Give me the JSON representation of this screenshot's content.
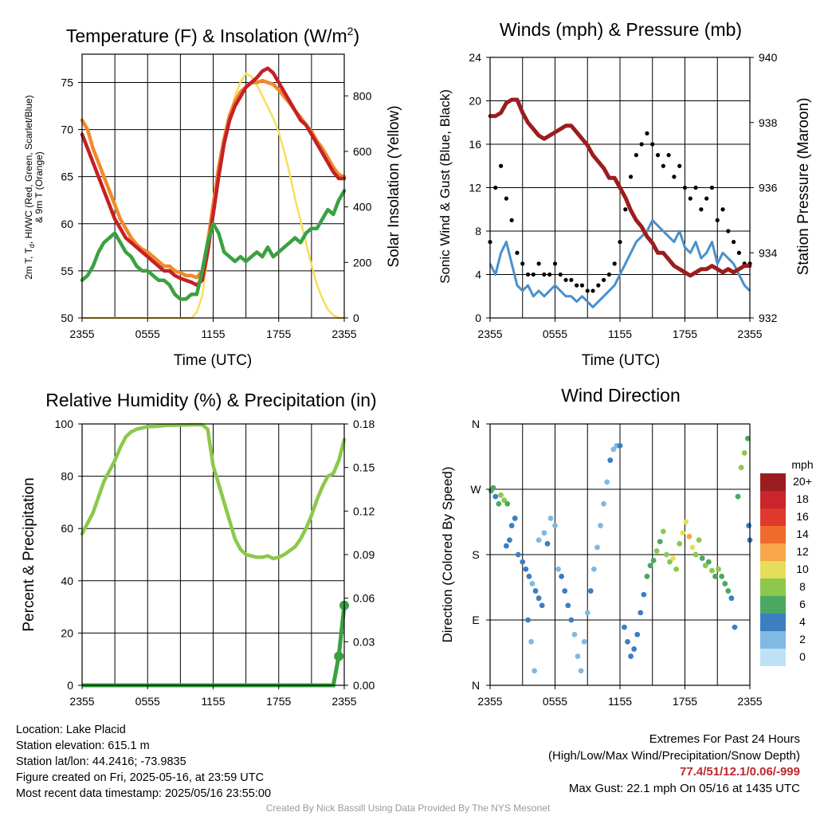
{
  "colors": {
    "temp": "#c42127",
    "dewpoint": "#3aa140",
    "windchill": "#e36d2a",
    "temp9m": "#f08a2a",
    "solar": "#f7de5a",
    "sonic_wind": "#4a90cc",
    "gust": "#000000",
    "pressure": "#9b1d1d",
    "rh": "#8cc84b",
    "precip": "#3aa140"
  },
  "chart_data": [
    {
      "type": "line",
      "title": "Temperature (F) & Insolation (W/m²)",
      "title_main": "Temperature (F) & Insolation (W/m",
      "title_sup": "2",
      "title_end": ")",
      "xlabel": "Time (UTC)",
      "xticks": [
        "2355",
        "0555",
        "1155",
        "1755",
        "2355"
      ],
      "ylabel_left_lines": [
        "2m T, T",
        "d",
        ", HI/WC (Red, Green, Scarlet/Blue)",
        "& 9m T (Orange)"
      ],
      "ylabel_right": "Solar Insolation (Yellow)",
      "ylim": [
        50,
        78
      ],
      "yticks_left": [
        50,
        55,
        60,
        65,
        70,
        75
      ],
      "ylim_right": [
        0,
        950
      ],
      "yticks_right": [
        0,
        200,
        400,
        600,
        800
      ],
      "x_hours": [
        0,
        0.5,
        1,
        1.5,
        2,
        2.5,
        3,
        3.5,
        4,
        4.5,
        5,
        5.5,
        6,
        6.5,
        7,
        7.5,
        8,
        8.5,
        9,
        9.5,
        10,
        10.5,
        11,
        11.5,
        12,
        12.5,
        13,
        13.5,
        14,
        14.5,
        15,
        15.5,
        16,
        16.5,
        17,
        17.5,
        18,
        18.5,
        19,
        19.5,
        20,
        20.5,
        21,
        21.5,
        22,
        22.5,
        23,
        23.5,
        24
      ],
      "series": [
        {
          "key": "temp9m",
          "values": [
            71,
            70,
            68,
            66.5,
            65,
            63.5,
            62,
            60.5,
            59.5,
            58.5,
            57.8,
            57.3,
            57,
            56.5,
            56,
            55.5,
            55.5,
            55,
            54.8,
            54.5,
            54.5,
            54.3,
            55,
            58,
            62,
            66,
            69,
            71.5,
            73,
            74,
            74.5,
            75,
            75,
            75.2,
            75,
            74.8,
            74.2,
            73.5,
            72.8,
            72,
            71.3,
            70.5,
            69.8,
            68.8,
            68,
            67,
            66,
            65.2,
            65
          ]
        },
        {
          "key": "temp",
          "values": [
            69.5,
            68,
            66.5,
            65,
            63.5,
            62,
            60.5,
            59.5,
            58.5,
            58,
            57.5,
            57,
            56.5,
            56,
            55.5,
            55,
            55,
            54.5,
            54.2,
            54,
            53.8,
            53.5,
            54,
            57,
            61,
            65,
            68.5,
            71,
            72.5,
            73.5,
            74.5,
            75,
            75.5,
            76.2,
            76.5,
            76,
            75,
            74,
            73,
            72,
            71,
            70.5,
            69.5,
            68.5,
            67.5,
            66.5,
            65.5,
            64.8,
            64.8
          ]
        },
        {
          "key": "dewpoint",
          "values": [
            54,
            54.5,
            55.5,
            57,
            58,
            58.5,
            59,
            58,
            57,
            56.5,
            55.5,
            55,
            55,
            54.5,
            54,
            54,
            53.5,
            52.5,
            52,
            52,
            52.5,
            52.5,
            55,
            58,
            60,
            59,
            57,
            56.5,
            56,
            56.5,
            56,
            56.5,
            57,
            56.5,
            57.5,
            56.5,
            57,
            57.5,
            58,
            58.5,
            58,
            59,
            59.5,
            59.5,
            60.5,
            61.5,
            61,
            62.5,
            63.5
          ]
        },
        {
          "key": "solar",
          "values": [
            0,
            0,
            0,
            0,
            0,
            0,
            0,
            0,
            0,
            0,
            0,
            0,
            0,
            0,
            0,
            0,
            0,
            0,
            0,
            0,
            0,
            20,
            80,
            220,
            400,
            540,
            650,
            720,
            800,
            850,
            880,
            870,
            840,
            800,
            760,
            720,
            670,
            600,
            520,
            430,
            350,
            270,
            190,
            120,
            70,
            30,
            10,
            0,
            0
          ]
        }
      ]
    },
    {
      "type": "scatter",
      "title": "Winds (mph) & Pressure (mb)",
      "xlabel": "Time (UTC)",
      "xticks": [
        "2355",
        "0555",
        "1155",
        "1755",
        "2355"
      ],
      "ylabel_left": "Sonic Wind & Gust (Blue, Black)",
      "ylabel_right": "Station Pressure (Maroon)",
      "ylim": [
        0,
        24
      ],
      "yticks_left": [
        0,
        4,
        8,
        12,
        16,
        20,
        24
      ],
      "ylim_right": [
        932,
        940
      ],
      "yticks_right": [
        932,
        934,
        936,
        938,
        940
      ],
      "x_hours": [
        0,
        0.5,
        1,
        1.5,
        2,
        2.5,
        3,
        3.5,
        4,
        4.5,
        5,
        5.5,
        6,
        6.5,
        7,
        7.5,
        8,
        8.5,
        9,
        9.5,
        10,
        10.5,
        11,
        11.5,
        12,
        12.5,
        13,
        13.5,
        14,
        14.5,
        15,
        15.5,
        16,
        16.5,
        17,
        17.5,
        18,
        18.5,
        19,
        19.5,
        20,
        20.5,
        21,
        21.5,
        22,
        22.5,
        23,
        23.5,
        24
      ],
      "series": [
        {
          "key": "sonic_wind",
          "values": [
            5,
            4,
            6,
            7,
            5,
            3,
            2.5,
            3,
            2,
            2.5,
            2,
            2.5,
            3,
            2.5,
            2,
            2,
            1.5,
            2,
            1.5,
            1,
            1.5,
            2,
            2.5,
            3,
            4,
            5,
            6,
            7,
            7.5,
            8,
            9,
            8.5,
            8,
            7.5,
            7,
            8,
            6.5,
            6,
            7,
            5.5,
            6,
            7,
            5,
            6,
            5.5,
            5,
            4,
            3,
            2.5
          ]
        },
        {
          "key": "gust",
          "values": [
            7,
            12,
            14,
            11,
            9,
            6,
            5,
            4,
            4,
            5,
            4,
            4,
            5,
            4,
            3.5,
            3.5,
            3,
            3,
            2.5,
            2.5,
            3,
            3.5,
            4,
            5,
            7,
            10,
            13,
            15,
            16,
            17,
            16,
            15,
            14,
            15,
            13,
            14,
            12,
            11,
            12,
            10,
            11,
            12,
            9,
            10,
            8,
            7,
            6,
            5,
            5
          ]
        },
        {
          "key": "pressure",
          "values": [
            938.2,
            938.2,
            938.3,
            938.6,
            938.7,
            938.7,
            938.3,
            938.0,
            937.8,
            937.6,
            937.5,
            937.6,
            937.7,
            937.8,
            937.9,
            937.9,
            937.7,
            937.5,
            937.3,
            937.0,
            936.8,
            936.6,
            936.3,
            936.3,
            936.0,
            935.7,
            935.3,
            935.0,
            934.8,
            934.5,
            934.3,
            934.0,
            934.0,
            933.8,
            933.6,
            933.5,
            933.4,
            933.3,
            933.4,
            933.5,
            933.5,
            933.6,
            933.5,
            933.4,
            933.5,
            933.4,
            933.5,
            933.6,
            933.6
          ]
        }
      ]
    },
    {
      "type": "line",
      "title": "Relative Humidity (%) & Precipitation (in)",
      "xlabel": "",
      "xticks": [
        "2355",
        "0555",
        "1155",
        "1755",
        "2355"
      ],
      "ylabel_left": "Percent & Precipitation",
      "ylim": [
        0,
        100
      ],
      "yticks_left": [
        0,
        20,
        40,
        60,
        80,
        100
      ],
      "ylim_right": [
        0,
        0.18
      ],
      "yticks_right": [
        "0.00",
        "0.03",
        "0.06",
        "0.09",
        "0.12",
        "0.15",
        "0.18"
      ],
      "x_hours": [
        0,
        0.5,
        1,
        1.5,
        2,
        2.5,
        3,
        3.5,
        4,
        4.5,
        5,
        5.5,
        6,
        6.5,
        7,
        7.5,
        8,
        8.5,
        9,
        9.5,
        10,
        10.5,
        11,
        11.5,
        12,
        12.5,
        13,
        13.5,
        14,
        14.5,
        15,
        15.5,
        16,
        16.5,
        17,
        17.5,
        18,
        18.5,
        19,
        19.5,
        20,
        20.5,
        21,
        21.5,
        22,
        22.5,
        23,
        23.5,
        24
      ],
      "series": [
        {
          "key": "rh",
          "values": [
            58,
            62,
            66,
            72,
            78,
            82,
            86,
            91,
            95,
            97,
            98,
            98.5,
            99,
            99,
            99.2,
            99.4,
            99.5,
            99.5,
            99.6,
            99.6,
            99.7,
            99.7,
            99.7,
            98,
            84,
            77,
            70,
            63,
            56,
            52,
            50,
            49.5,
            49,
            49,
            49.5,
            48.5,
            49,
            50,
            51.5,
            53,
            56,
            60,
            65,
            71,
            76,
            80,
            81,
            86,
            94
          ]
        },
        {
          "key": "precip",
          "values": [
            0,
            0,
            0,
            0,
            0,
            0,
            0,
            0,
            0,
            0,
            0,
            0,
            0,
            0,
            0,
            0,
            0,
            0,
            0,
            0,
            0,
            0,
            0,
            0,
            0,
            0,
            0,
            0,
            0,
            0,
            0,
            0,
            0,
            0,
            0,
            0,
            0,
            0,
            0,
            0,
            0,
            0,
            0,
            0,
            0,
            0,
            0,
            0.02,
            0.055
          ]
        }
      ]
    },
    {
      "type": "scatter",
      "title": "Wind Direction",
      "xlabel": "",
      "xticks": [
        "2355",
        "0555",
        "1155",
        "1755",
        "2355"
      ],
      "ylabel_left": "Direction (Colored By Speed)",
      "yticks_left": [
        "N",
        "E",
        "S",
        "W",
        "N"
      ],
      "ylim": [
        0,
        360
      ],
      "legend": {
        "title": "mph",
        "labels": [
          "20+",
          "18",
          "16",
          "14",
          "12",
          "10",
          "8",
          "6",
          "4",
          "2",
          "0"
        ],
        "colors": [
          "#9b1d20",
          "#c9252b",
          "#e0382b",
          "#ef6b2c",
          "#f9a64a",
          "#e5de5c",
          "#8cc84b",
          "#4aa862",
          "#3d7ec2",
          "#7fb9e4",
          "#bfe1f6"
        ],
        "placement": "right"
      },
      "points": [
        [
          0.1,
          268,
          5
        ],
        [
          0.3,
          272,
          6
        ],
        [
          0.5,
          260,
          4
        ],
        [
          0.8,
          250,
          5
        ],
        [
          1.0,
          262,
          7
        ],
        [
          1.3,
          255,
          8
        ],
        [
          1.6,
          250,
          6
        ],
        [
          2.0,
          220,
          4
        ],
        [
          2.3,
          230,
          3
        ],
        [
          1.8,
          200,
          3
        ],
        [
          1.5,
          192,
          4
        ],
        [
          2.6,
          180,
          3
        ],
        [
          3.0,
          170,
          3
        ],
        [
          3.3,
          160,
          4
        ],
        [
          3.6,
          150,
          3
        ],
        [
          3.9,
          140,
          2
        ],
        [
          4.2,
          130,
          3
        ],
        [
          4.5,
          120,
          3
        ],
        [
          4.8,
          110,
          4
        ],
        [
          3.5,
          90,
          3
        ],
        [
          3.8,
          60,
          2
        ],
        [
          4.1,
          20,
          2
        ],
        [
          4.5,
          200,
          2
        ],
        [
          5.0,
          210,
          2
        ],
        [
          5.3,
          195,
          3
        ],
        [
          5.6,
          230,
          2
        ],
        [
          6.0,
          220,
          2
        ],
        [
          6.3,
          160,
          2
        ],
        [
          6.6,
          150,
          3
        ],
        [
          6.9,
          130,
          4
        ],
        [
          7.2,
          110,
          3
        ],
        [
          7.5,
          90,
          4
        ],
        [
          7.8,
          70,
          2
        ],
        [
          8.1,
          40,
          2
        ],
        [
          8.4,
          20,
          2
        ],
        [
          8.7,
          60,
          2
        ],
        [
          9.0,
          100,
          2
        ],
        [
          9.3,
          130,
          3
        ],
        [
          9.6,
          160,
          2
        ],
        [
          9.9,
          190,
          2
        ],
        [
          10.2,
          220,
          2
        ],
        [
          10.5,
          250,
          2
        ],
        [
          10.8,
          280,
          2
        ],
        [
          11.1,
          310,
          3
        ],
        [
          11.4,
          325,
          2
        ],
        [
          11.7,
          330,
          2
        ],
        [
          12.0,
          330,
          3
        ],
        [
          12.4,
          80,
          4
        ],
        [
          12.7,
          60,
          4
        ],
        [
          13.0,
          40,
          3
        ],
        [
          13.3,
          50,
          4
        ],
        [
          13.6,
          70,
          3
        ],
        [
          13.9,
          100,
          4
        ],
        [
          14.2,
          125,
          4
        ],
        [
          14.5,
          150,
          5
        ],
        [
          14.8,
          165,
          6
        ],
        [
          15.1,
          172,
          6
        ],
        [
          15.4,
          185,
          7
        ],
        [
          15.7,
          198,
          6
        ],
        [
          16.0,
          212,
          7
        ],
        [
          16.3,
          180,
          8
        ],
        [
          16.6,
          170,
          8
        ],
        [
          16.9,
          175,
          9
        ],
        [
          17.2,
          160,
          7
        ],
        [
          17.5,
          195,
          8
        ],
        [
          17.8,
          210,
          9
        ],
        [
          18.1,
          225,
          10
        ],
        [
          18.4,
          205,
          11
        ],
        [
          18.7,
          190,
          9
        ],
        [
          19.0,
          180,
          8
        ],
        [
          19.3,
          200,
          7
        ],
        [
          19.6,
          175,
          6
        ],
        [
          19.9,
          165,
          7
        ],
        [
          20.2,
          170,
          6
        ],
        [
          20.5,
          158,
          7
        ],
        [
          20.8,
          150,
          6
        ],
        [
          21.1,
          160,
          7
        ],
        [
          21.4,
          150,
          5
        ],
        [
          21.7,
          140,
          6
        ],
        [
          22.0,
          130,
          5
        ],
        [
          22.3,
          120,
          4
        ],
        [
          22.6,
          80,
          4
        ],
        [
          22.9,
          260,
          6
        ],
        [
          23.2,
          300,
          8
        ],
        [
          23.5,
          320,
          7
        ],
        [
          23.8,
          340,
          5
        ],
        [
          23.9,
          220,
          4
        ],
        [
          24.0,
          200,
          4
        ]
      ]
    }
  ],
  "footer": {
    "location": "Location: Lake Placid",
    "elevation": "Station elevation: 615.1 m",
    "latlon": "Station lat/lon: 44.2416; -73.9835",
    "created": "Figure created on Fri, 2025-05-16, at 23:59 UTC",
    "recent": "Most recent data timestamp: 2025/05/16 23:55:00",
    "extremes_title": "Extremes For Past 24 Hours",
    "extremes_sub": "(High/Low/Max Wind/Precipitation/Snow Depth)",
    "extremes_values": "77.4/51/12.1/0.06/-999",
    "max_gust": "Max Gust: 22.1 mph On 05/16 at 1435 UTC",
    "credit": "Created By Nick Bassill Using Data Provided By The NYS Mesonet"
  }
}
